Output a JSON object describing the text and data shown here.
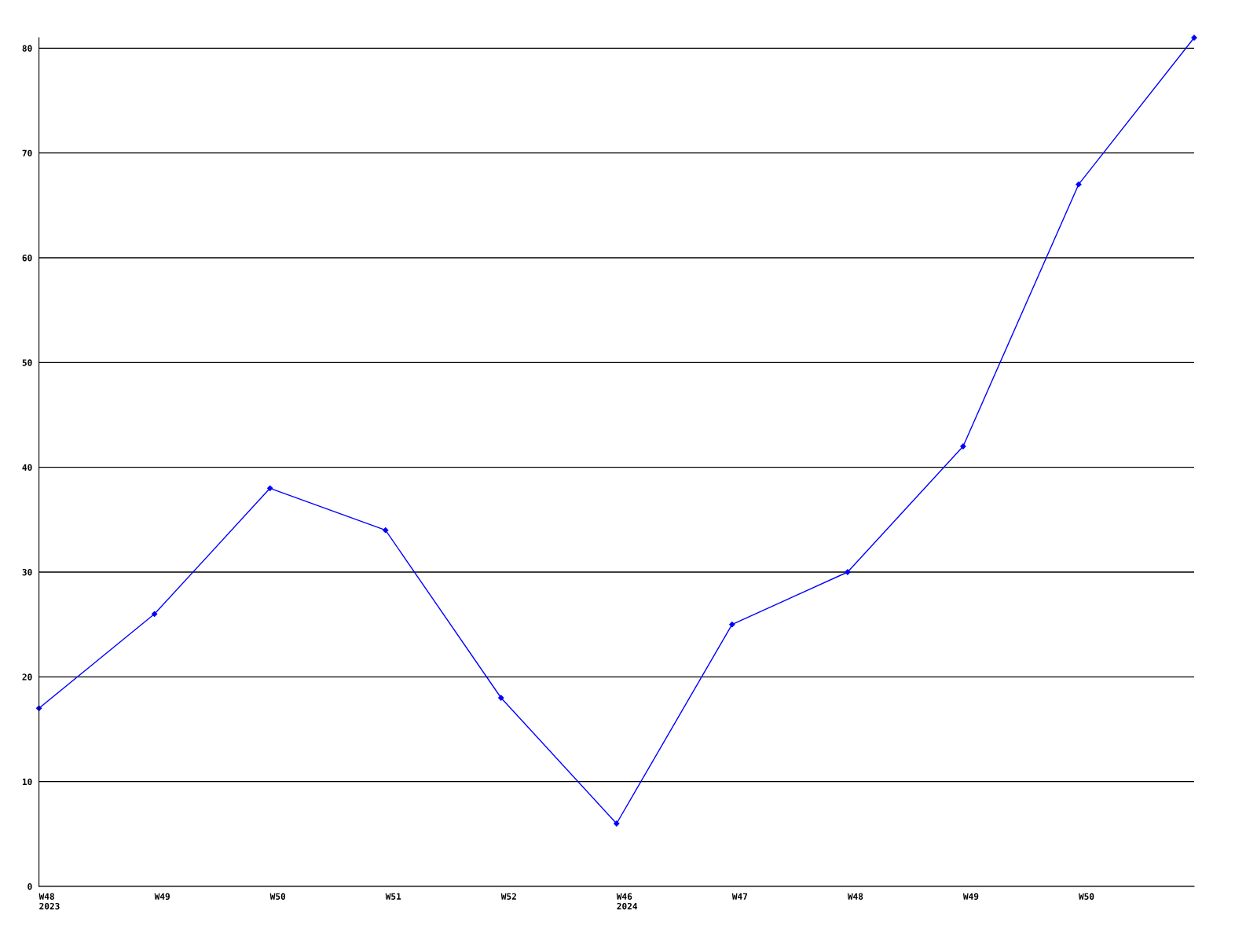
{
  "chart_data": {
    "type": "line",
    "categories": [
      "W48\n2023",
      "W49",
      "W50",
      "W51",
      "W52",
      "W46\n2024",
      "W47",
      "W48",
      "W49",
      "W50",
      null
    ],
    "series": [
      {
        "color": "#0000ff",
        "values": [
          17,
          26,
          38,
          34,
          18,
          6,
          25,
          30,
          42,
          67,
          81
        ]
      }
    ],
    "ylim": [
      0,
      81
    ],
    "yticks": [
      0,
      10,
      20,
      30,
      40,
      50,
      60,
      70,
      80
    ],
    "grid": "y",
    "marker": "diamond",
    "line_style": "solid"
  }
}
